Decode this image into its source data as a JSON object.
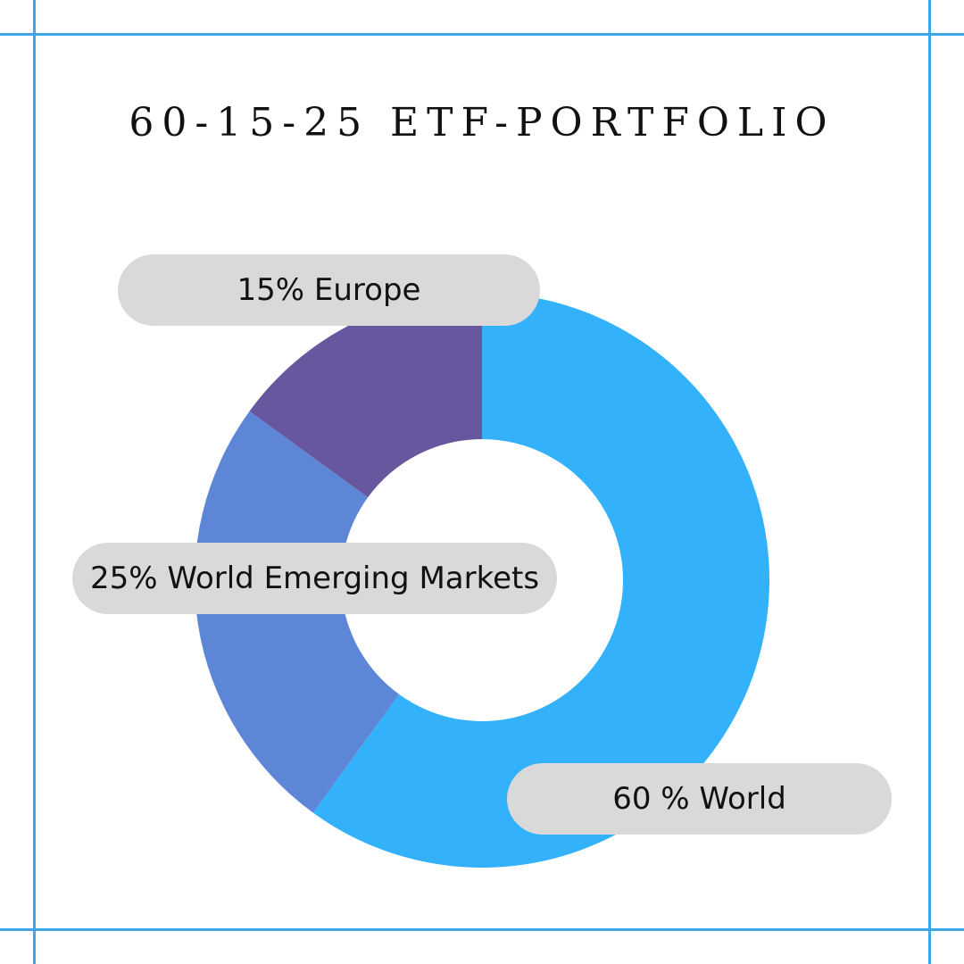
{
  "colors": {
    "frame": "#3fa6e8",
    "world": "#33b1fb",
    "emerging": "#5e86d6",
    "europe": "#67579f",
    "pill": "#d9d9d9",
    "text": "#111111"
  },
  "chart_data": {
    "type": "pie",
    "style": "donut",
    "title": "60-15-25 ETF-PORTFOLIO",
    "slices": [
      {
        "category": "World",
        "value": 60,
        "label": "60 % World",
        "color": "#33b1fb"
      },
      {
        "category": "World Emerging Markets",
        "value": 25,
        "label": "25% World Emerging Markets",
        "color": "#5e86d6"
      },
      {
        "category": "Europe",
        "value": 15,
        "label": "15% Europe",
        "color": "#67579f"
      }
    ],
    "start_angle": "12 o'clock",
    "direction": "clockwise"
  }
}
